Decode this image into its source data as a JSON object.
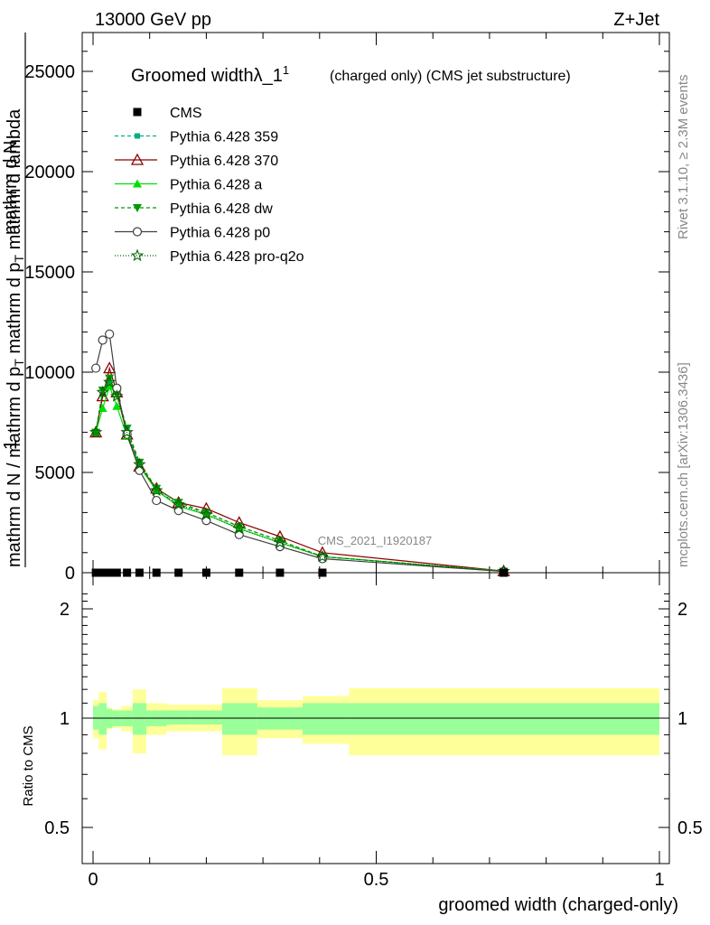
{
  "header": {
    "left": "13000 GeV pp",
    "right": "Z+Jet"
  },
  "side_labels": {
    "rivet": "Rivet 3.1.10, ≥ 2.3M events",
    "mcplots": "mcplots.cern.ch [arXiv:1306.3436]"
  },
  "chart_data": {
    "type": "line",
    "title": "Groomed width",
    "title_symbol": "λ_1",
    "title_superscript": "1",
    "title_suffix": "(charged only) (CMS jet substructure)",
    "analysis_label": "CMS_2021_I1920187",
    "ylabel_main_line1": "mathrm d",
    "ylabel_main_line2": "mathrm d p",
    "ylabel_main_line3": "mathrm d p",
    "ylabel_main_full": "1 / mathrm d N / mathrm d p_T mathrm d^2 N / mathrm d p_T mathrm d lambda",
    "ylabel_ratio": "Ratio to CMS",
    "xlabel": "groomed width (charged-only)",
    "xlim": [
      0,
      1
    ],
    "ylim_main": [
      0,
      27000
    ],
    "ylim_ratio": [
      0.4,
      2.3
    ],
    "x_ticks": [
      "0",
      "0.5",
      "1"
    ],
    "y_ticks_main": [
      "0",
      "5000",
      "10000",
      "15000",
      "20000",
      "25000"
    ],
    "y_ticks_ratio": [
      "0.5",
      "1",
      "2"
    ],
    "legend_position": "top-left",
    "x": [
      0.005,
      0.017,
      0.029,
      0.042,
      0.06,
      0.082,
      0.112,
      0.151,
      0.2,
      0.258,
      0.33,
      0.405,
      0.725
    ],
    "bin_edges": [
      0.0,
      0.01,
      0.024,
      0.034,
      0.05,
      0.07,
      0.094,
      0.13,
      0.172,
      0.228,
      0.29,
      0.37,
      0.452,
      1.0
    ],
    "series": [
      {
        "name": "CMS",
        "color": "#000000",
        "marker": "square",
        "values": [
          0,
          0,
          0,
          0,
          0,
          0,
          0,
          0,
          0,
          0,
          0,
          0,
          0
        ]
      },
      {
        "name": "Pythia 6.428 359",
        "color": "#00b080",
        "marker": "small-square",
        "dash": "4,3",
        "values": [
          7000,
          8900,
          9500,
          9000,
          7100,
          5400,
          4100,
          3400,
          3000,
          2300,
          1600,
          800,
          70
        ]
      },
      {
        "name": "Pythia 6.428 370",
        "color": "#8b0000",
        "marker": "open-triangle-up",
        "dash": "",
        "values": [
          7000,
          8800,
          10200,
          9000,
          6900,
          5300,
          4200,
          3500,
          3200,
          2500,
          1800,
          1000,
          80
        ]
      },
      {
        "name": "Pythia 6.428 a",
        "color": "#00e000",
        "marker": "triangle-up",
        "dash": "",
        "values": [
          7000,
          8200,
          9300,
          8300,
          6800,
          5300,
          4100,
          3300,
          2900,
          2200,
          1500,
          800,
          70
        ]
      },
      {
        "name": "Pythia 6.428 dw",
        "color": "#009900",
        "marker": "triangle-down",
        "dash": "4,3",
        "values": [
          7000,
          9100,
          9700,
          8900,
          7200,
          5500,
          4200,
          3500,
          3000,
          2300,
          1600,
          800,
          70
        ]
      },
      {
        "name": "Pythia 6.428 p0",
        "color": "#404040",
        "marker": "open-circle",
        "dash": "",
        "values": [
          10200,
          11600,
          11900,
          9200,
          6900,
          5100,
          3600,
          3100,
          2600,
          1900,
          1300,
          700,
          60
        ]
      },
      {
        "name": "Pythia 6.428 pro-q2o",
        "color": "#006400",
        "marker": "open-star",
        "dash": "1,2",
        "values": [
          7000,
          9000,
          9500,
          8800,
          7000,
          5400,
          4100,
          3400,
          2900,
          2200,
          1500,
          800,
          70
        ]
      }
    ],
    "ratio_bands": {
      "inner": [
        [
          0.93,
          1.08
        ],
        [
          0.9,
          1.1
        ],
        [
          0.94,
          1.06
        ],
        [
          0.95,
          1.05
        ],
        [
          0.95,
          1.05
        ],
        [
          0.9,
          1.1
        ],
        [
          0.95,
          1.05
        ],
        [
          0.96,
          1.05
        ],
        [
          0.96,
          1.05
        ],
        [
          0.9,
          1.1
        ],
        [
          0.93,
          1.07
        ],
        [
          0.9,
          1.1
        ],
        [
          0.9,
          1.1
        ]
      ],
      "outer": [
        [
          0.88,
          1.12
        ],
        [
          0.82,
          1.18
        ],
        [
          0.93,
          1.07
        ],
        [
          0.94,
          1.06
        ],
        [
          0.92,
          1.08
        ],
        [
          0.8,
          1.2
        ],
        [
          0.9,
          1.1
        ],
        [
          0.92,
          1.09
        ],
        [
          0.92,
          1.09
        ],
        [
          0.79,
          1.21
        ],
        [
          0.88,
          1.12
        ],
        [
          0.85,
          1.15
        ],
        [
          0.79,
          1.21
        ]
      ],
      "inner_color": "#99ff99",
      "outer_color": "#ffff99"
    }
  }
}
